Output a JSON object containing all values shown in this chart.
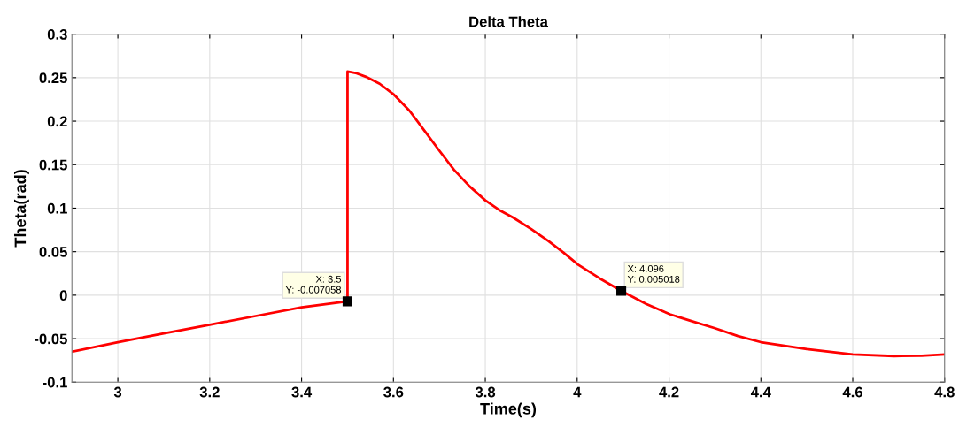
{
  "chart_data": {
    "type": "line",
    "title": "Delta Theta",
    "xlabel": "Time(s)",
    "ylabel": "Theta(rad)",
    "series": [
      {
        "color": "#ff0000",
        "x": [
          2.9,
          3.0,
          3.1,
          3.2,
          3.3,
          3.4,
          3.5,
          3.5,
          3.52,
          3.54,
          3.57,
          3.6,
          3.635,
          3.669,
          3.7,
          3.732,
          3.766,
          3.8,
          3.83,
          3.861,
          3.9,
          3.938,
          3.97,
          4.002,
          4.05,
          4.096,
          4.15,
          4.202,
          4.25,
          4.3,
          4.35,
          4.4,
          4.5,
          4.6,
          4.69,
          4.75,
          4.8
        ],
        "values": [
          -0.065,
          -0.054,
          -0.044,
          -0.034,
          -0.024,
          -0.014,
          -0.007058,
          0.257,
          0.255,
          0.251,
          0.243,
          0.231,
          0.212,
          0.188,
          0.166,
          0.144,
          0.125,
          0.109,
          0.098,
          0.089,
          0.076,
          0.062,
          0.049,
          0.035,
          0.019,
          0.005018,
          -0.01,
          -0.022,
          -0.03,
          -0.038,
          -0.047,
          -0.054,
          -0.062,
          -0.068,
          -0.07,
          -0.0695,
          -0.068
        ]
      }
    ],
    "xlim": [
      2.9,
      4.8
    ],
    "xticks": [
      3,
      3.2,
      3.4,
      3.6,
      3.8,
      4,
      4.2,
      4.4,
      4.6,
      4.8
    ],
    "ylim": [
      -0.1,
      0.3
    ],
    "yticks": [
      -0.1,
      -0.05,
      0,
      0.05,
      0.1,
      0.15,
      0.2,
      0.25,
      0.3
    ],
    "grid": true,
    "annotations": [
      {
        "text": "X: 3.5\nY: -0.007058",
        "x": 3.5,
        "y": -0.007058
      },
      {
        "text": "X: 4.096\nY: 0.005018",
        "x": 4.096,
        "y": 0.005018
      }
    ]
  }
}
